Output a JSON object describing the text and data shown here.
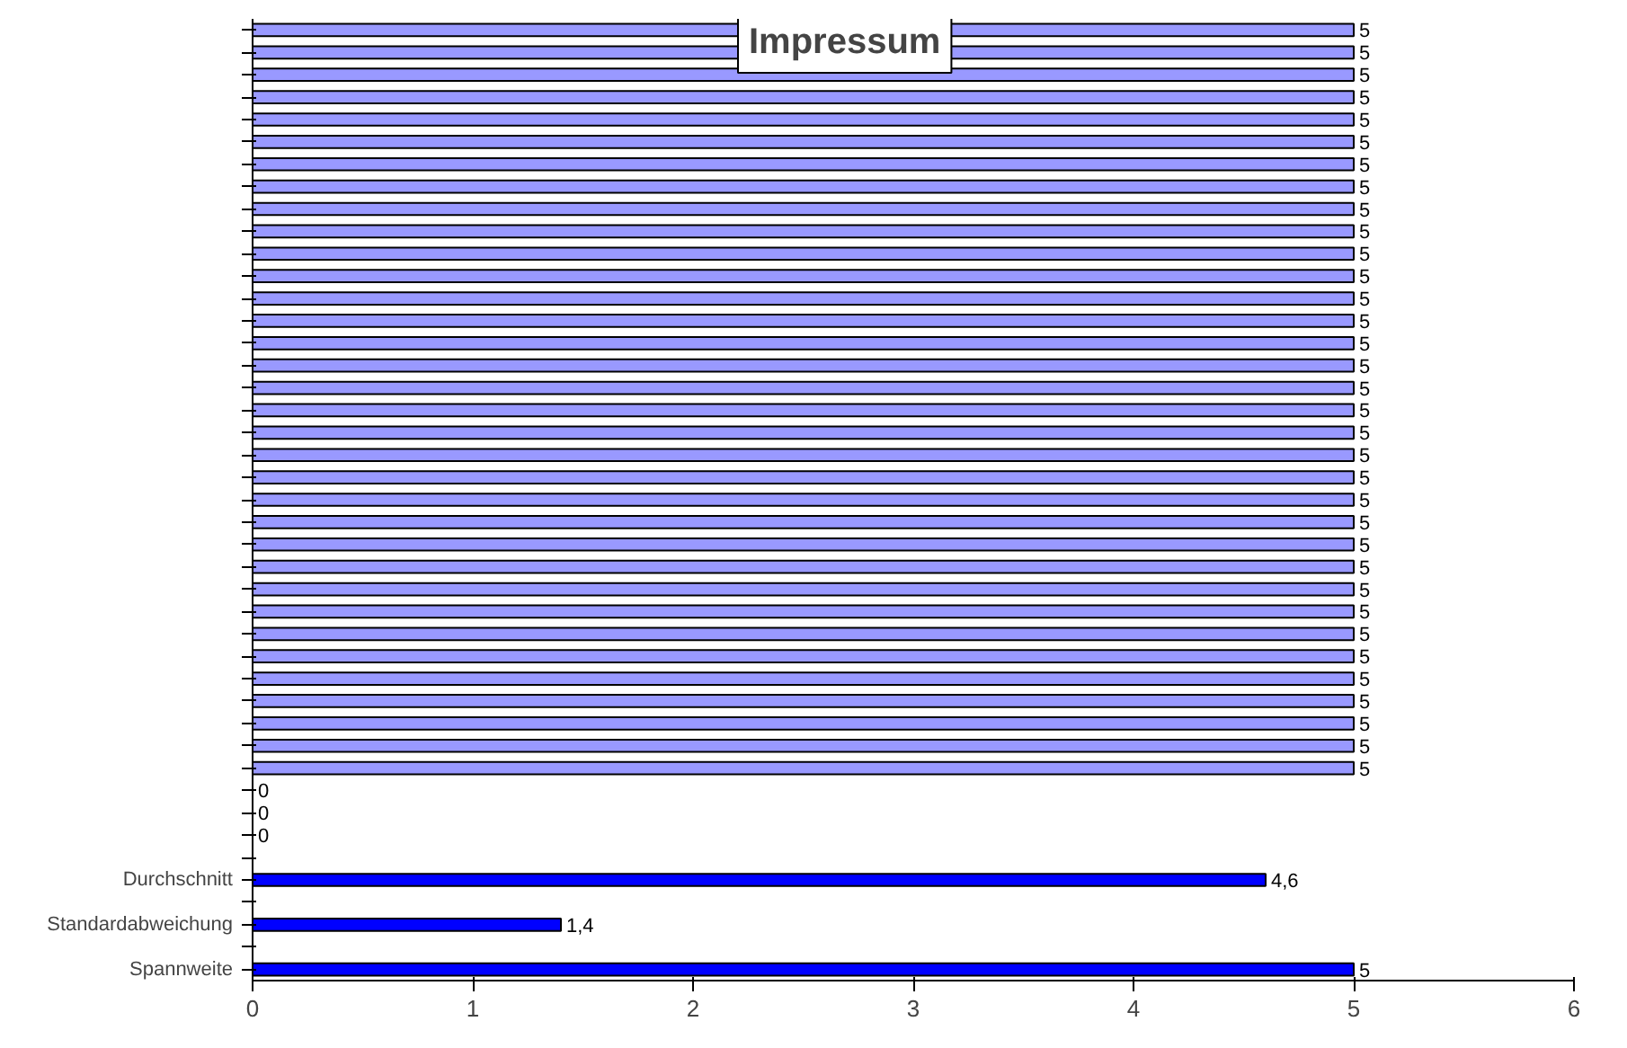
{
  "chart_data": {
    "type": "bar",
    "orientation": "horizontal",
    "title": "Impressum",
    "categories": [
      null,
      null,
      null,
      null,
      null,
      null,
      null,
      null,
      null,
      null,
      null,
      null,
      null,
      null,
      null,
      null,
      null,
      null,
      null,
      null,
      null,
      null,
      null,
      null,
      null,
      null,
      null,
      null,
      null,
      null,
      null,
      null,
      null,
      null,
      null,
      null,
      null,
      null,
      "Durchschnitt",
      null,
      "Standardabweichung",
      null,
      "Spannweite"
    ],
    "values": [
      5,
      5,
      5,
      5,
      5,
      5,
      5,
      5,
      5,
      5,
      5,
      5,
      5,
      5,
      5,
      5,
      5,
      5,
      5,
      5,
      5,
      5,
      5,
      5,
      5,
      5,
      5,
      5,
      5,
      5,
      5,
      5,
      5,
      5,
      0,
      0,
      0,
      null,
      4.6,
      null,
      1.4,
      null,
      5
    ],
    "value_labels": [
      "5",
      "5",
      "5",
      "5",
      "5",
      "5",
      "5",
      "5",
      "5",
      "5",
      "5",
      "5",
      "5",
      "5",
      "5",
      "5",
      "5",
      "5",
      "5",
      "5",
      "5",
      "5",
      "5",
      "5",
      "5",
      "5",
      "5",
      "5",
      "5",
      "5",
      "5",
      "5",
      "5",
      "5",
      "0",
      "0",
      "0",
      null,
      "4,6",
      null,
      "1,4",
      null,
      "5"
    ],
    "colors": [
      "#9999ff",
      "#9999ff",
      "#9999ff",
      "#9999ff",
      "#9999ff",
      "#9999ff",
      "#9999ff",
      "#9999ff",
      "#9999ff",
      "#9999ff",
      "#9999ff",
      "#9999ff",
      "#9999ff",
      "#9999ff",
      "#9999ff",
      "#9999ff",
      "#9999ff",
      "#9999ff",
      "#9999ff",
      "#9999ff",
      "#9999ff",
      "#9999ff",
      "#9999ff",
      "#9999ff",
      "#9999ff",
      "#9999ff",
      "#9999ff",
      "#9999ff",
      "#9999ff",
      "#9999ff",
      "#9999ff",
      "#9999ff",
      "#9999ff",
      "#9999ff",
      null,
      null,
      null,
      null,
      "#0000ff",
      "#0000ff",
      "#0000ff",
      "#0000ff",
      "#0000ff"
    ],
    "xlim": [
      0,
      6
    ],
    "xticks": [
      0,
      1,
      2,
      3,
      4,
      5,
      6
    ],
    "grid": false
  }
}
